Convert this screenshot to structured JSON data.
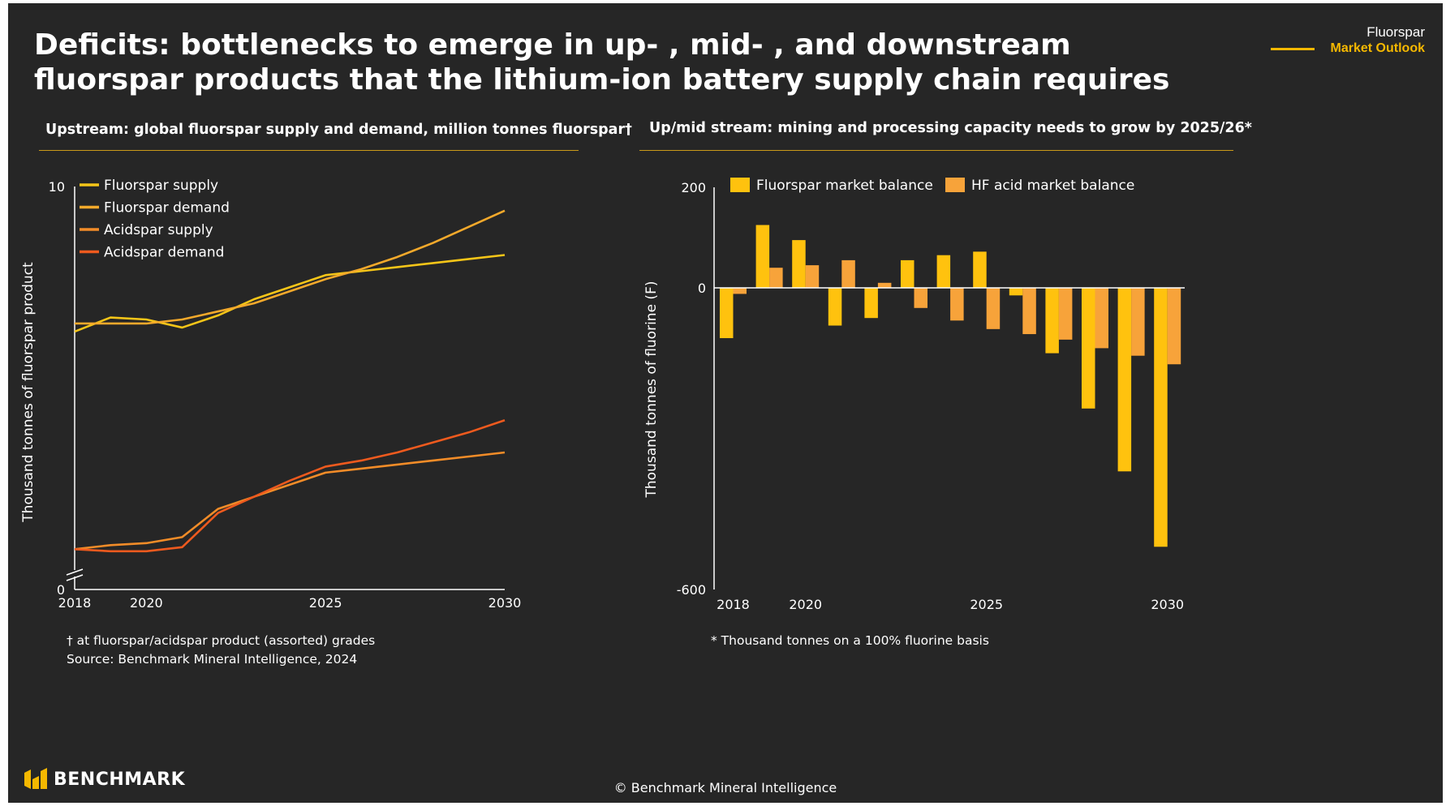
{
  "title": {
    "line1": "Deficits: bottlenecks to emerge in up- , mid- , and downstream",
    "line2": "fluorspar products that the lithium-ion battery supply chain requires"
  },
  "brand_tag": {
    "top": "Fluorspar",
    "sub": "Market Outlook"
  },
  "colors": {
    "background": "#262626",
    "accent": "#F5B800",
    "fluorspar_supply": "#F5C518",
    "fluorspar_demand": "#F3A92B",
    "acidspar_supply": "#F28C28",
    "acidspar_demand": "#EE5A1E",
    "fluorspar_balance": "#FFC20E",
    "hf_balance": "#F7A33A"
  },
  "left_panel": {
    "title": "Upstream: global fluorspar supply and demand, million tonnes fluorspar†",
    "footnote1": "† at fluorspar/acidspar product (assorted) grades",
    "footnote2": "Source: Benchmark Mineral Intelligence, 2024"
  },
  "right_panel": {
    "title": "Up/mid stream: mining and processing capacity needs to grow by 2025/26*",
    "footnote1": "* Thousand tonnes on a 100% fluorine basis"
  },
  "chart_data": [
    {
      "type": "line",
      "ylabel": "Thousand tonnes of fluorspar product",
      "ylim": [
        0,
        10
      ],
      "yticks": [
        "0",
        "10"
      ],
      "xlim": [
        2018,
        2030
      ],
      "xticks": [
        "2018",
        "2020",
        "2025",
        "2030"
      ],
      "axis_break": true,
      "legend_position": "top-left",
      "x": [
        2018,
        2019,
        2020,
        2021,
        2022,
        2023,
        2024,
        2025,
        2026,
        2027,
        2028,
        2029,
        2030
      ],
      "series": [
        {
          "name": "Fluorspar supply",
          "color_key": "fluorspar_supply",
          "values": [
            6.4,
            6.75,
            6.7,
            6.5,
            6.8,
            7.2,
            7.5,
            7.8,
            7.9,
            8.0,
            8.1,
            8.2,
            8.3
          ]
        },
        {
          "name": "Fluorspar demand",
          "color_key": "fluorspar_demand",
          "values": [
            6.6,
            6.6,
            6.6,
            6.7,
            6.9,
            7.1,
            7.4,
            7.7,
            7.95,
            8.25,
            8.6,
            9.0,
            9.4
          ]
        },
        {
          "name": "Acidspar supply",
          "color_key": "acidspar_supply",
          "values": [
            1.0,
            1.1,
            1.15,
            1.3,
            2.0,
            2.3,
            2.6,
            2.9,
            3.0,
            3.1,
            3.2,
            3.3,
            3.4
          ]
        },
        {
          "name": "Acidspar demand",
          "color_key": "acidspar_demand",
          "values": [
            1.0,
            0.95,
            0.95,
            1.05,
            1.9,
            2.3,
            2.7,
            3.05,
            3.2,
            3.4,
            3.65,
            3.9,
            4.2
          ]
        }
      ]
    },
    {
      "type": "bar",
      "ylabel": "Thousand tonnes of fluorine (F)",
      "ylim": [
        -600,
        200
      ],
      "yticks": [
        "-600",
        "0",
        "200"
      ],
      "xticks": [
        "2018",
        "2020",
        "2025",
        "2030"
      ],
      "legend_position": "top",
      "categories": [
        "2018",
        "2019",
        "2020",
        "2021",
        "2022",
        "2023",
        "2024",
        "2025",
        "2026",
        "2027",
        "2028",
        "2029",
        "2030"
      ],
      "series": [
        {
          "name": "Fluorspar market balance",
          "color_key": "fluorspar_balance",
          "values": [
            -100,
            125,
            95,
            -75,
            -60,
            55,
            65,
            72,
            -15,
            -130,
            -240,
            -365,
            -515
          ]
        },
        {
          "name": "HF acid market balance",
          "color_key": "hf_balance",
          "values": [
            -12,
            40,
            45,
            55,
            10,
            -40,
            -65,
            -82,
            -92,
            -103,
            -120,
            -135,
            -152
          ]
        }
      ]
    }
  ],
  "footer": {
    "copyright": "© Benchmark Mineral Intelligence",
    "logo_text": "BENCHMARK"
  }
}
